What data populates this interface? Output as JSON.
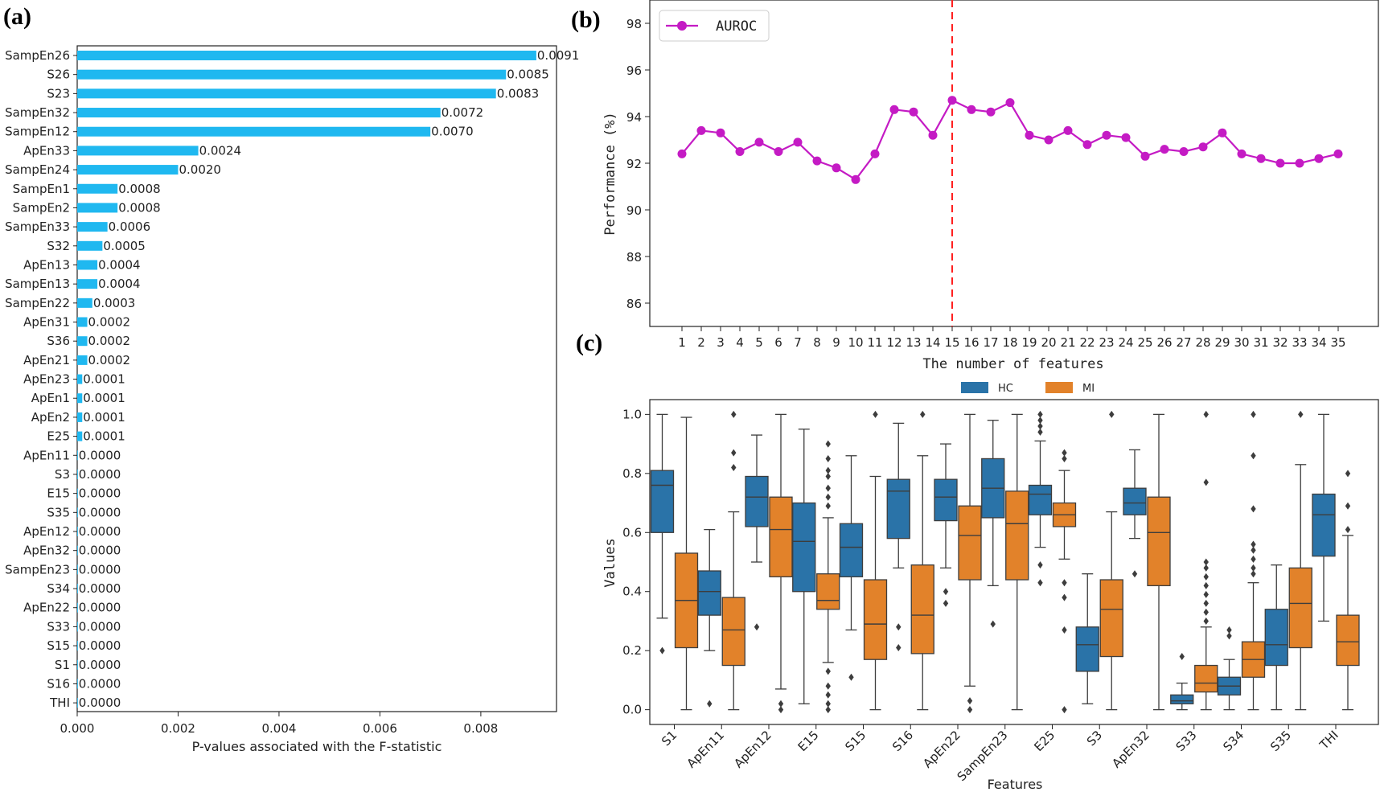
{
  "panels": {
    "a": "(a)",
    "b": "(b)",
    "c": "(c)"
  },
  "colors": {
    "bar": "#1fb8f0",
    "line": "#c41bc4",
    "hc": "#2a73a8",
    "mi": "#e2822a",
    "marker_line": "#ff2020"
  },
  "chart_data": [
    {
      "type": "bar",
      "orientation": "horizontal",
      "panel": "(a)",
      "xlabel": "P-values associated with the F-statistic",
      "xlim": [
        0,
        0.0095
      ],
      "xticks": [
        "0.000",
        "0.002",
        "0.004",
        "0.006",
        "0.008"
      ],
      "categories": [
        "SampEn26",
        "S26",
        "S23",
        "SampEn32",
        "SampEn12",
        "ApEn33",
        "SampEn24",
        "SampEn1",
        "SampEn2",
        "SampEn33",
        "S32",
        "ApEn13",
        "SampEn13",
        "SampEn22",
        "ApEn31",
        "S36",
        "ApEn21",
        "ApEn23",
        "ApEn1",
        "ApEn2",
        "E25",
        "ApEn11",
        "S3",
        "E15",
        "S35",
        "ApEn12",
        "ApEn32",
        "SampEn23",
        "S34",
        "ApEn22",
        "S33",
        "S15",
        "S1",
        "S16",
        "THI"
      ],
      "values": [
        0.0091,
        0.0085,
        0.0083,
        0.0072,
        0.007,
        0.0024,
        0.002,
        0.0008,
        0.0008,
        0.0006,
        0.0005,
        0.0004,
        0.0004,
        0.0003,
        0.0002,
        0.0002,
        0.0002,
        0.0001,
        0.0001,
        0.0001,
        0.0001,
        0.0,
        0.0,
        0.0,
        0.0,
        0.0,
        0.0,
        0.0,
        0.0,
        0.0,
        0.0,
        0.0,
        0.0,
        0.0,
        0.0
      ],
      "data_labels": [
        "0.0091",
        "0.0085",
        "0.0083",
        "0.0072",
        "0.0070",
        "0.0024",
        "0.0020",
        "0.0008",
        "0.0008",
        "0.0006",
        "0.0005",
        "0.0004",
        "0.0004",
        "0.0003",
        "0.0002",
        "0.0002",
        "0.0002",
        "0.0001",
        "0.0001",
        "0.0001",
        "0.0001",
        "0.0000",
        "0.0000",
        "0.0000",
        "0.0000",
        "0.0000",
        "0.0000",
        "0.0000",
        "0.0000",
        "0.0000",
        "0.0000",
        "0.0000",
        "0.0000",
        "0.0000",
        "0.0000"
      ]
    },
    {
      "type": "line",
      "panel": "(b)",
      "xlabel": "The number of features",
      "ylabel": "Performance (%)",
      "ylim": [
        85,
        99
      ],
      "yticks": [
        "86",
        "88",
        "90",
        "92",
        "94",
        "96",
        "98"
      ],
      "x": [
        1,
        2,
        3,
        4,
        5,
        6,
        7,
        8,
        9,
        10,
        11,
        12,
        13,
        14,
        15,
        16,
        17,
        18,
        19,
        20,
        21,
        22,
        23,
        24,
        25,
        26,
        27,
        28,
        29,
        30,
        31,
        32,
        33,
        34,
        35
      ],
      "series": [
        {
          "name": "AUROC",
          "values": [
            92.4,
            93.4,
            93.3,
            92.5,
            92.9,
            92.5,
            92.9,
            92.1,
            91.8,
            91.3,
            92.4,
            94.3,
            94.2,
            93.2,
            94.7,
            94.3,
            94.2,
            94.6,
            93.2,
            93.0,
            93.4,
            92.8,
            93.2,
            93.1,
            92.3,
            92.6,
            92.5,
            92.7,
            93.3,
            92.4,
            92.2,
            92.0,
            92.0,
            92.2,
            92.4
          ]
        }
      ],
      "vline_x": 15,
      "legend": "top-left"
    },
    {
      "type": "box",
      "panel": "(c)",
      "xlabel": "Features",
      "ylabel": "Values",
      "ylim": [
        -0.05,
        1.05
      ],
      "yticks": [
        "0.0",
        "0.2",
        "0.4",
        "0.6",
        "0.8",
        "1.0"
      ],
      "categories": [
        "S1",
        "ApEn11",
        "ApEn12",
        "E15",
        "S15",
        "S16",
        "ApEn22",
        "SampEn23",
        "E25",
        "S3",
        "ApEn32",
        "S33",
        "S34",
        "S35",
        "THI"
      ],
      "legend": "top-center",
      "series": [
        {
          "name": "HC",
          "boxes": [
            {
              "whislo": 0.31,
              "q1": 0.6,
              "med": 0.76,
              "q3": 0.81,
              "whishi": 1.0,
              "fliers": [
                0.2
              ]
            },
            {
              "whislo": 0.2,
              "q1": 0.32,
              "med": 0.4,
              "q3": 0.47,
              "whishi": 0.61,
              "fliers": [
                0.02
              ]
            },
            {
              "whislo": 0.5,
              "q1": 0.62,
              "med": 0.72,
              "q3": 0.79,
              "whishi": 0.93,
              "fliers": [
                0.28
              ]
            },
            {
              "whislo": 0.02,
              "q1": 0.4,
              "med": 0.57,
              "q3": 0.7,
              "whishi": 0.95,
              "fliers": []
            },
            {
              "whislo": 0.27,
              "q1": 0.45,
              "med": 0.55,
              "q3": 0.63,
              "whishi": 0.86,
              "fliers": [
                0.11
              ]
            },
            {
              "whislo": 0.48,
              "q1": 0.58,
              "med": 0.74,
              "q3": 0.78,
              "whishi": 0.97,
              "fliers": [
                0.28,
                0.21
              ]
            },
            {
              "whislo": 0.48,
              "q1": 0.64,
              "med": 0.72,
              "q3": 0.78,
              "whishi": 0.9,
              "fliers": [
                0.4,
                0.36
              ]
            },
            {
              "whislo": 0.42,
              "q1": 0.65,
              "med": 0.75,
              "q3": 0.85,
              "whishi": 0.98,
              "fliers": [
                0.29
              ]
            },
            {
              "whislo": 0.55,
              "q1": 0.66,
              "med": 0.73,
              "q3": 0.76,
              "whishi": 0.91,
              "fliers": [
                1.0,
                0.98,
                0.96,
                0.94,
                0.49,
                0.43
              ]
            },
            {
              "whislo": 0.02,
              "q1": 0.13,
              "med": 0.22,
              "q3": 0.28,
              "whishi": 0.46,
              "fliers": []
            },
            {
              "whislo": 0.58,
              "q1": 0.66,
              "med": 0.7,
              "q3": 0.75,
              "whishi": 0.88,
              "fliers": [
                0.46
              ]
            },
            {
              "whislo": 0.0,
              "q1": 0.02,
              "med": 0.03,
              "q3": 0.05,
              "whishi": 0.09,
              "fliers": [
                0.18
              ]
            },
            {
              "whislo": 0.0,
              "q1": 0.05,
              "med": 0.08,
              "q3": 0.11,
              "whishi": 0.17,
              "fliers": [
                0.27,
                0.25
              ]
            },
            {
              "whislo": 0.0,
              "q1": 0.15,
              "med": 0.22,
              "q3": 0.34,
              "whishi": 0.49,
              "fliers": []
            },
            {
              "whislo": 0.3,
              "q1": 0.52,
              "med": 0.66,
              "q3": 0.73,
              "whishi": 1.0,
              "fliers": []
            }
          ]
        },
        {
          "name": "MI",
          "boxes": [
            {
              "whislo": 0.0,
              "q1": 0.21,
              "med": 0.37,
              "q3": 0.53,
              "whishi": 0.99,
              "fliers": []
            },
            {
              "whislo": 0.0,
              "q1": 0.15,
              "med": 0.27,
              "q3": 0.38,
              "whishi": 0.67,
              "fliers": [
                1.0,
                0.87,
                0.82
              ]
            },
            {
              "whislo": 0.07,
              "q1": 0.45,
              "med": 0.61,
              "q3": 0.72,
              "whishi": 1.0,
              "fliers": [
                0.02,
                0.0
              ]
            },
            {
              "whislo": 0.16,
              "q1": 0.34,
              "med": 0.37,
              "q3": 0.46,
              "whishi": 0.65,
              "fliers": [
                0.9,
                0.85,
                0.81,
                0.79,
                0.75,
                0.72,
                0.69,
                0.13,
                0.08,
                0.05,
                0.02,
                0.0
              ]
            },
            {
              "whislo": 0.0,
              "q1": 0.17,
              "med": 0.29,
              "q3": 0.44,
              "whishi": 0.79,
              "fliers": [
                1.0
              ]
            },
            {
              "whislo": 0.0,
              "q1": 0.19,
              "med": 0.32,
              "q3": 0.49,
              "whishi": 0.86,
              "fliers": [
                1.0
              ]
            },
            {
              "whislo": 0.08,
              "q1": 0.44,
              "med": 0.59,
              "q3": 0.69,
              "whishi": 1.0,
              "fliers": [
                0.03,
                0.0
              ]
            },
            {
              "whislo": 0.0,
              "q1": 0.44,
              "med": 0.63,
              "q3": 0.74,
              "whishi": 1.0,
              "fliers": []
            },
            {
              "whislo": 0.51,
              "q1": 0.62,
              "med": 0.66,
              "q3": 0.7,
              "whishi": 0.81,
              "fliers": [
                0.87,
                0.85,
                0.43,
                0.38,
                0.27,
                0.0
              ]
            },
            {
              "whislo": 0.0,
              "q1": 0.18,
              "med": 0.34,
              "q3": 0.44,
              "whishi": 0.67,
              "fliers": [
                1.0
              ]
            },
            {
              "whislo": 0.0,
              "q1": 0.42,
              "med": 0.6,
              "q3": 0.72,
              "whishi": 1.0,
              "fliers": []
            },
            {
              "whislo": 0.0,
              "q1": 0.06,
              "med": 0.09,
              "q3": 0.15,
              "whishi": 0.28,
              "fliers": [
                1.0,
                0.77,
                0.5,
                0.48,
                0.45,
                0.42,
                0.39,
                0.36,
                0.33,
                0.3
              ]
            },
            {
              "whislo": 0.0,
              "q1": 0.11,
              "med": 0.17,
              "q3": 0.23,
              "whishi": 0.43,
              "fliers": [
                1.0,
                0.86,
                0.68,
                0.56,
                0.54,
                0.51,
                0.48,
                0.46
              ]
            },
            {
              "whislo": 0.0,
              "q1": 0.21,
              "med": 0.36,
              "q3": 0.48,
              "whishi": 0.83,
              "fliers": [
                1.0
              ]
            },
            {
              "whislo": 0.0,
              "q1": 0.15,
              "med": 0.23,
              "q3": 0.32,
              "whishi": 0.59,
              "fliers": [
                0.8,
                0.69,
                0.61
              ]
            }
          ]
        }
      ]
    }
  ]
}
